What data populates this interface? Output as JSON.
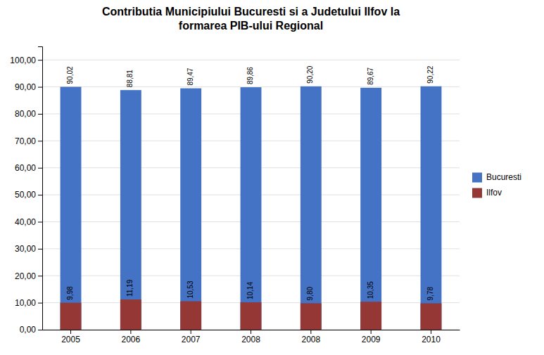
{
  "chart_data": {
    "type": "bar",
    "title": "Contributia Municipiului Bucuresti si a Judetului Ilfov la\nformarea PIB-ului Regional",
    "categories": [
      "2005",
      "2006",
      "2007",
      "2008",
      "2008",
      "2009",
      "2010"
    ],
    "series": [
      {
        "name": "Bucuresti",
        "color": "#4472C4",
        "values": [
          90.02,
          88.81,
          89.47,
          89.86,
          90.2,
          89.67,
          90.22
        ],
        "value_labels": [
          "90,02",
          "88,81",
          "89,47",
          "89,86",
          "90,20",
          "89,67",
          "90,22"
        ]
      },
      {
        "name": "Ilfov",
        "color": "#953735",
        "values": [
          9.98,
          11.19,
          10.53,
          10.14,
          9.8,
          10.35,
          9.78
        ],
        "value_labels": [
          "9,98",
          "11,19",
          "10,53",
          "10,14",
          "9,80",
          "10,35",
          "9,78"
        ]
      }
    ],
    "stacked": false,
    "data_labels": true,
    "ylim": [
      0,
      105
    ],
    "yticks": [
      {
        "value": 0,
        "label": "0,00"
      },
      {
        "value": 10,
        "label": "10,00"
      },
      {
        "value": 20,
        "label": "20,00"
      },
      {
        "value": 30,
        "label": "30,00"
      },
      {
        "value": 40,
        "label": "40,00"
      },
      {
        "value": 50,
        "label": "50,00"
      },
      {
        "value": 60,
        "label": "60,00"
      },
      {
        "value": 70,
        "label": "70,00"
      },
      {
        "value": 80,
        "label": "80,00"
      },
      {
        "value": 90,
        "label": "90,00"
      },
      {
        "value": 100,
        "label": "100,00"
      }
    ],
    "grid": true,
    "legend": "right"
  }
}
